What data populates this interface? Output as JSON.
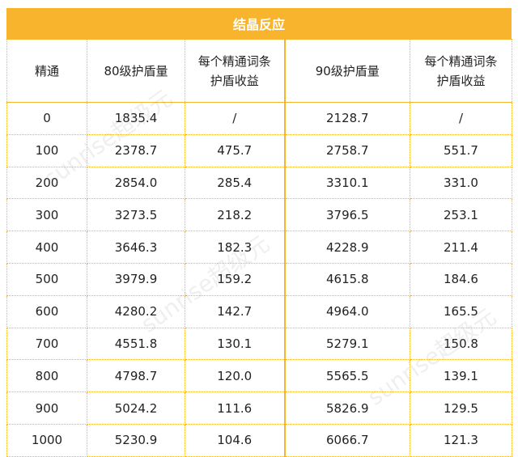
{
  "title": "结晶反应",
  "headers": [
    "精通",
    "80级护盾量",
    "每个精通词条\n护盾收益",
    "90级护盾量",
    "每个精通词条\n护盾收益"
  ],
  "rows": [
    [
      "0",
      "1835.4",
      "/",
      "2128.7",
      "/"
    ],
    [
      "100",
      "2378.7",
      "475.7",
      "2758.7",
      "551.7"
    ],
    [
      "200",
      "2854.0",
      "285.4",
      "3310.1",
      "331.0"
    ],
    [
      "300",
      "3273.5",
      "218.2",
      "3796.5",
      "253.1"
    ],
    [
      "400",
      "3646.3",
      "182.3",
      "4228.9",
      "211.4"
    ],
    [
      "500",
      "3979.9",
      "159.2",
      "4615.8",
      "184.6"
    ],
    [
      "600",
      "4280.2",
      "142.7",
      "4964.0",
      "165.5"
    ],
    [
      "700",
      "4551.8",
      "130.1",
      "5279.1",
      "150.8"
    ],
    [
      "800",
      "4798.7",
      "120.0",
      "5565.5",
      "139.1"
    ],
    [
      "900",
      "5024.2",
      "111.6",
      "5826.9",
      "129.5"
    ],
    [
      "1000",
      "5230.9",
      "104.6",
      "6066.7",
      "121.3"
    ]
  ],
  "watermark": "sunrise超级元",
  "colors": {
    "accent": "#f7b42c",
    "title_text": "#ffffff"
  }
}
